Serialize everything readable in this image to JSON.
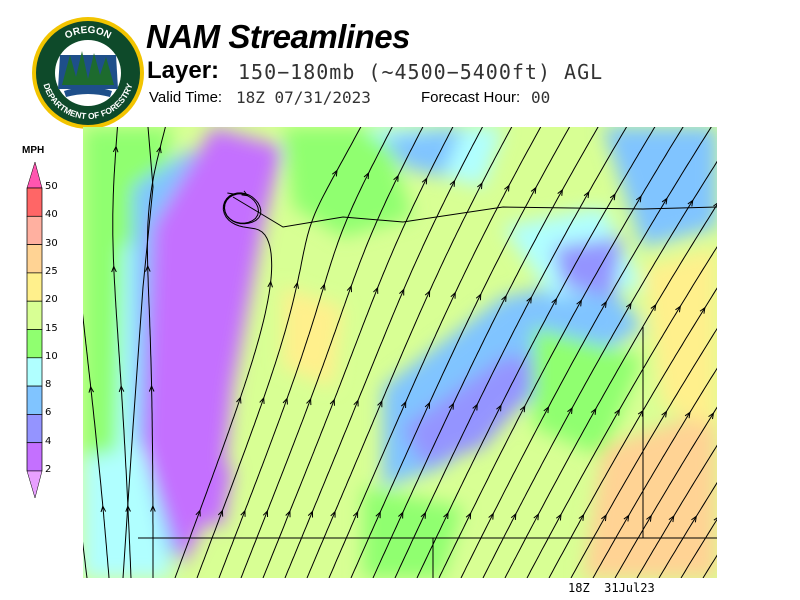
{
  "header": {
    "title": "NAM Streamlines",
    "layer_label": "Layer:",
    "layer_value": "150−180mb (~4500−5400ft) AGL",
    "valid_label": "Valid Time:",
    "valid_value": "18Z 07/31/2023",
    "forecast_label": "Forecast Hour:",
    "forecast_value": "00"
  },
  "logo": {
    "top_text": "OREGON",
    "bottom_text": "DEPARTMENT OF FORESTRY"
  },
  "legend": {
    "unit": "MPH",
    "ticks": [
      "50",
      "40",
      "30",
      "25",
      "20",
      "15",
      "10",
      "8",
      "6",
      "4",
      "2"
    ],
    "colors": {
      "above_50": "#ff55b0",
      "40-50": "#ff6666",
      "30-40": "#ffb0a0",
      "25-30": "#ffd394",
      "20-25": "#fff08c",
      "15-20": "#d8ff94",
      "10-15": "#90ff70",
      "8-10": "#b0ffff",
      "6-8": "#80c4ff",
      "4-6": "#9494ff",
      "2-4": "#c470ff",
      "below_2": "#e8a0ff"
    }
  },
  "footer": "18Z  31Jul23"
}
